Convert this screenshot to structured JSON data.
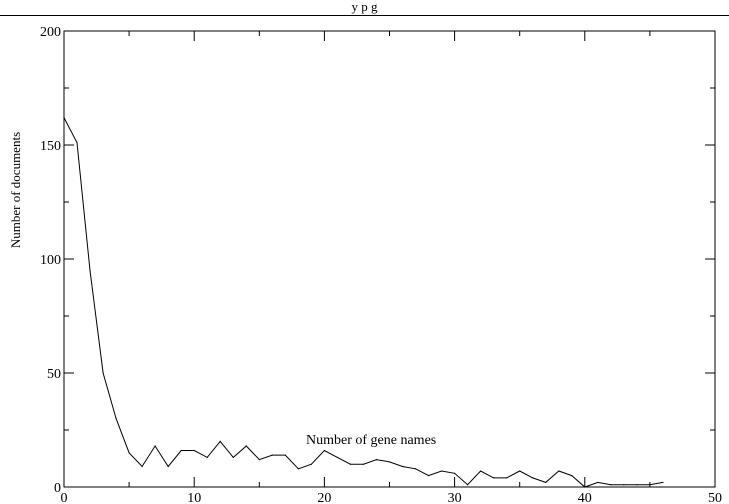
{
  "page": {
    "title": "y p                    g"
  },
  "chart_data": {
    "type": "line",
    "title": "",
    "xlabel": "",
    "ylabel": "Number of documents",
    "xlim": [
      0,
      50
    ],
    "ylim": [
      0,
      200
    ],
    "x_ticks": [
      "0",
      "10",
      "20",
      "30",
      "40",
      "50"
    ],
    "y_ticks": [
      "0",
      "50",
      "100",
      "150",
      "200"
    ],
    "grid": false,
    "annotation": "Number of gene names",
    "series": [
      {
        "x": [
          0,
          1,
          2,
          3,
          4,
          5,
          6,
          7,
          8,
          9,
          10,
          11,
          12,
          13,
          14,
          15,
          16,
          17,
          18,
          19,
          20,
          21,
          22,
          23,
          24,
          25,
          26,
          27,
          28,
          29,
          30,
          31,
          32,
          33,
          34,
          35,
          36,
          37,
          38,
          39,
          40,
          41,
          42,
          43,
          44,
          45,
          46
        ],
        "y": [
          162,
          151,
          95,
          50,
          30,
          15,
          9,
          18,
          9,
          16,
          16,
          13,
          20,
          13,
          18,
          12,
          14,
          14,
          8,
          10,
          16,
          13,
          10,
          10,
          12,
          11,
          9,
          8,
          5,
          7,
          6,
          1,
          7,
          4,
          4,
          7,
          4,
          2,
          7,
          5,
          0,
          2,
          1,
          1,
          1,
          1,
          2
        ]
      }
    ]
  }
}
